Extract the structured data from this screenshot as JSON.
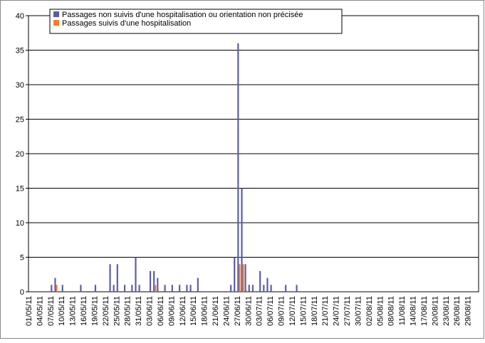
{
  "chart_data": {
    "type": "bar",
    "categories": [
      "01/05/11",
      null,
      null,
      "04/05/11",
      null,
      null,
      "07/05/11",
      null,
      null,
      "10/05/11",
      null,
      null,
      "13/05/11",
      null,
      null,
      "16/05/11",
      null,
      null,
      "19/05/11",
      null,
      null,
      "22/05/11",
      null,
      null,
      "25/05/11",
      null,
      null,
      "28/05/11",
      null,
      null,
      "31/05/11",
      null,
      null,
      "03/06/11",
      null,
      null,
      "06/06/11",
      null,
      null,
      "09/06/11",
      null,
      null,
      "12/06/11",
      null,
      null,
      "15/06/11",
      null,
      null,
      "18/06/11",
      null,
      null,
      "21/06/11",
      null,
      null,
      "24/06/11",
      null,
      null,
      "27/06/11",
      null,
      null,
      "30/06/11",
      null,
      null,
      "03/07/11",
      null,
      null,
      "06/07/11",
      null,
      null,
      "09/07/11",
      null,
      null,
      "12/07/11",
      null,
      null,
      "15/07/11",
      null,
      null,
      "18/07/11",
      null,
      null,
      "21/07/11",
      null,
      null,
      "24/07/11",
      null,
      null,
      "27/07/11",
      null,
      null,
      "30/07/11",
      null,
      null,
      "02/08/11",
      null,
      null,
      "05/08/11",
      null,
      null,
      "08/08/11",
      null,
      null,
      "11/08/11",
      null,
      null,
      "14/08/11",
      null,
      null,
      "17/08/11",
      null,
      null,
      "20/08/11",
      null,
      null,
      "23/08/11",
      null,
      null,
      "26/08/11",
      null,
      null,
      "29/08/11",
      null,
      null
    ],
    "series": [
      {
        "name": "Passages non suivis d'une hospitalisation ou orientation non précisée",
        "color": "#5b5ba6",
        "values": [
          0,
          0,
          0,
          0,
          0,
          0,
          1,
          2,
          0,
          1,
          0,
          0,
          0,
          0,
          1,
          0,
          0,
          0,
          1,
          0,
          0,
          0,
          4,
          1,
          4,
          0,
          1,
          0,
          1,
          5,
          1,
          0,
          0,
          3,
          3,
          2,
          0,
          1,
          0,
          1,
          0,
          1,
          0,
          1,
          1,
          0,
          2,
          0,
          0,
          0,
          0,
          0,
          0,
          0,
          0,
          1,
          5,
          36,
          15,
          4,
          1,
          1,
          0,
          3,
          1,
          2,
          1,
          0,
          0,
          0,
          1,
          0,
          0,
          1,
          0,
          0,
          0,
          0,
          0,
          0,
          0,
          0,
          0,
          0,
          0,
          0,
          0,
          0,
          0,
          0,
          0,
          0,
          0,
          0,
          0,
          0,
          0,
          0,
          0,
          0,
          0,
          0,
          0,
          0,
          0,
          0,
          0,
          0,
          0,
          0,
          0,
          0,
          0,
          0,
          0,
          0,
          0,
          0,
          0,
          0,
          0,
          0,
          0
        ]
      },
      {
        "name": "Passages suivis d'une hospitalisation",
        "color": "#ff7f27",
        "values": [
          0,
          0,
          0,
          0,
          0,
          0,
          0,
          1,
          0,
          0,
          0,
          0,
          0,
          0,
          0,
          0,
          0,
          0,
          0,
          0,
          0,
          0,
          0,
          0,
          0,
          0,
          0,
          0,
          0,
          0,
          0,
          0,
          0,
          0,
          1,
          0,
          0,
          0,
          0,
          0,
          0,
          0,
          0,
          0,
          0,
          0,
          0,
          0,
          0,
          0,
          0,
          0,
          0,
          0,
          0,
          0,
          0,
          4,
          4,
          0,
          0,
          0,
          0,
          0,
          0,
          0,
          0,
          0,
          0,
          0,
          0,
          0,
          0,
          0,
          0,
          0,
          0,
          0,
          0,
          0,
          0,
          0,
          0,
          0,
          0,
          0,
          0,
          0,
          0,
          0,
          0,
          0,
          0,
          0,
          0,
          0,
          0,
          0,
          0,
          0,
          0,
          0,
          0,
          0,
          0,
          0,
          0,
          0,
          0,
          0,
          0,
          0,
          0,
          0,
          0,
          0,
          0,
          0,
          0,
          0,
          0,
          0,
          0
        ]
      }
    ],
    "ylim": [
      0,
      40
    ],
    "yticks": [
      0,
      5,
      10,
      15,
      20,
      25,
      30,
      35,
      40
    ],
    "grid": true
  }
}
